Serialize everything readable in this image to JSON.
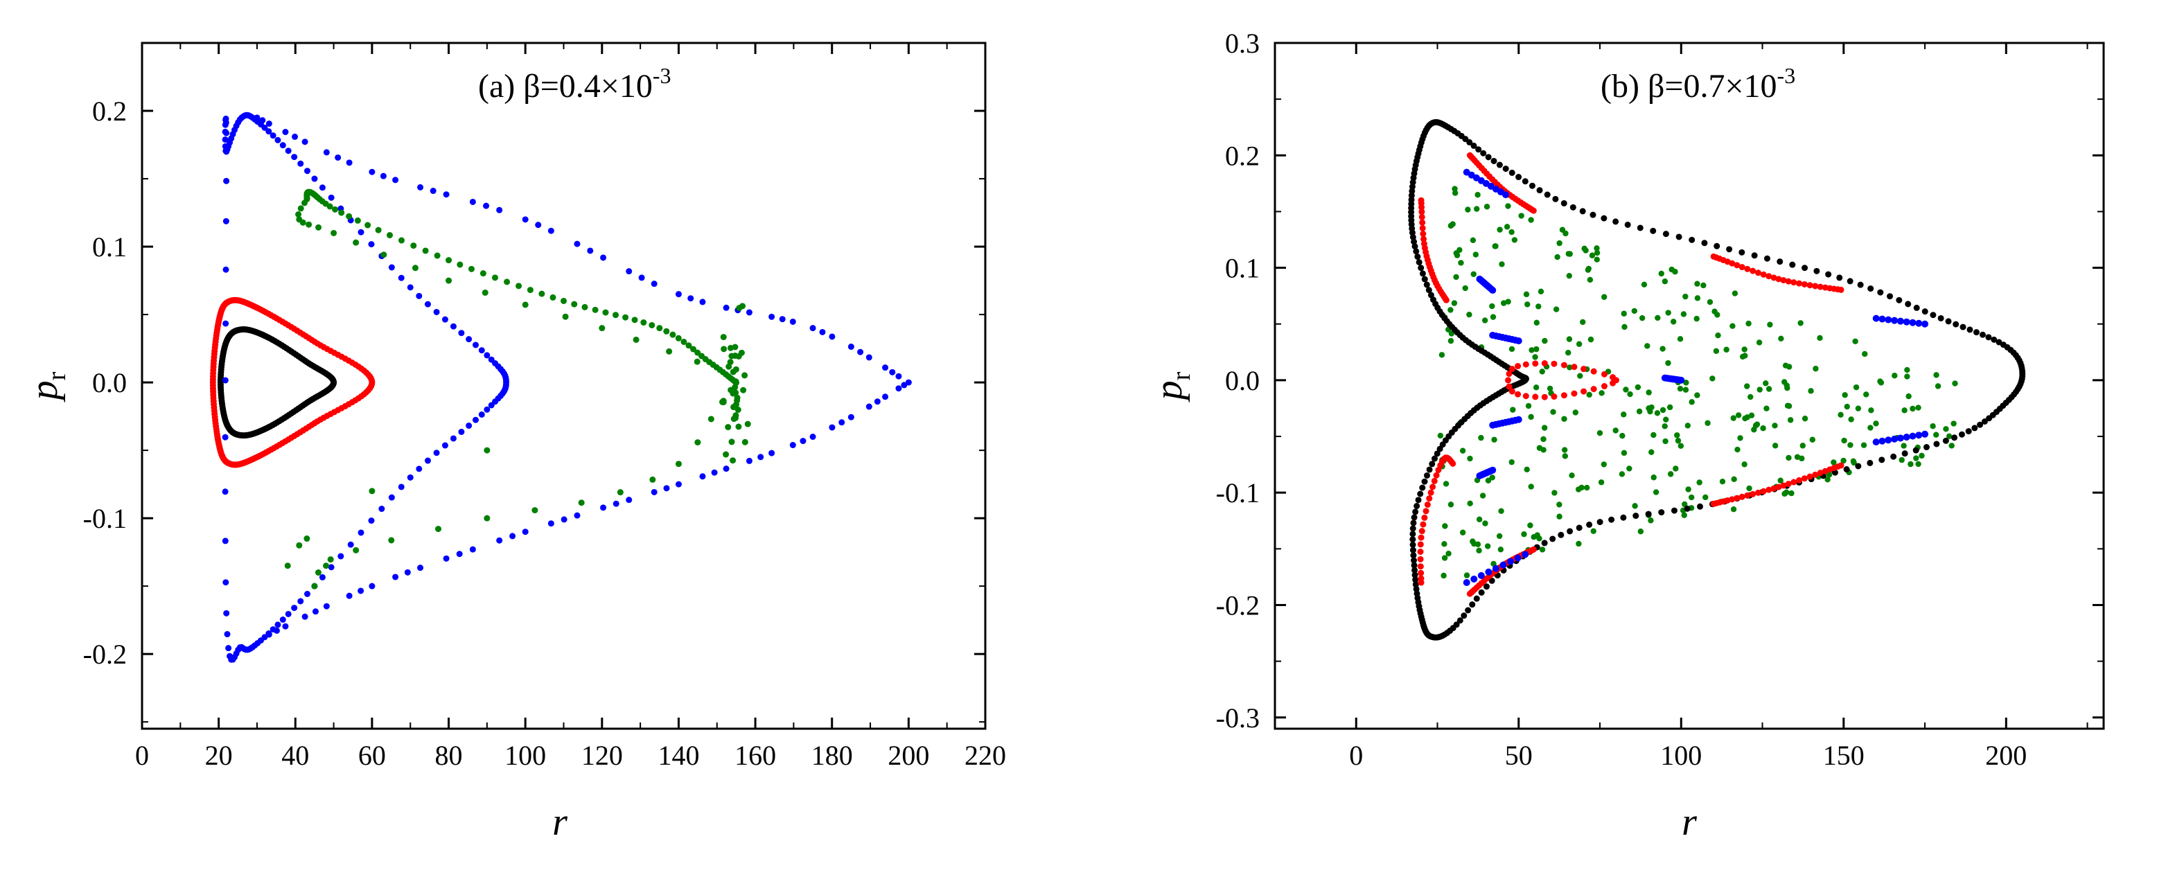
{
  "figure": {
    "description_labels": [
      "(a)",
      "(b)"
    ]
  },
  "chart_data": [
    {
      "type": "scatter",
      "panel": "a",
      "title": "(a) β=0.4×10",
      "title_exponent": "-3",
      "xlabel": "r",
      "ylabel": "p",
      "ylabel_subscript": "r",
      "xlim": [
        0,
        220
      ],
      "ylim": [
        -0.255,
        0.25
      ],
      "xticks": [
        0,
        20,
        40,
        60,
        80,
        100,
        120,
        140,
        160,
        180,
        200,
        220
      ],
      "xtick_labels": [
        "0",
        "20",
        "40",
        "60",
        "80",
        "100",
        "120",
        "140",
        "160",
        "180",
        "200",
        "220"
      ],
      "yticks": [
        -0.2,
        -0.1,
        0.0,
        0.1,
        0.2
      ],
      "ytick_labels": [
        "-0.2",
        "-0.1",
        "0.0",
        "0.1",
        "0.2"
      ],
      "grid": false,
      "series": [
        {
          "name": "black orbit",
          "color": "#000000",
          "shape": "closed-triangle-loop",
          "r_range": [
            22,
            50
          ],
          "pr_amplitude": 0.04,
          "points": 160
        },
        {
          "name": "red orbit",
          "color": "#ff0000",
          "shape": "closed-triangle-loop",
          "r_range": [
            20,
            60
          ],
          "pr_amplitude": 0.06,
          "points": 200
        },
        {
          "name": "blue orbit",
          "color": "#0000ff",
          "shape": "separatrix",
          "vertices": [
            [
              26,
              0.195
            ],
            [
              95,
              0.0
            ],
            [
              26,
              -0.195
            ]
          ],
          "outer": [
            [
              30,
              0.19
            ],
            [
              200,
              0.0
            ],
            [
              30,
              -0.19
            ]
          ]
        },
        {
          "name": "green orbit",
          "color": "#008000",
          "shape": "sparse-island",
          "vertices": [
            [
              43,
              0.135
            ],
            [
              155,
              0.0
            ],
            [
              43,
              -0.13
            ]
          ]
        }
      ]
    },
    {
      "type": "scatter",
      "panel": "b",
      "title": "(b) β=0.7×10",
      "title_exponent": "-3",
      "xlabel": "r",
      "ylabel": "p",
      "ylabel_subscript": "r",
      "xlim": [
        -25,
        230
      ],
      "ylim": [
        -0.31,
        0.3
      ],
      "xticks": [
        0,
        50,
        100,
        150,
        200
      ],
      "xtick_labels": [
        "0",
        "50",
        "100",
        "150",
        "200"
      ],
      "yticks": [
        -0.3,
        -0.2,
        -0.1,
        0.0,
        0.1,
        0.2,
        0.3
      ],
      "ytick_labels": [
        "-0.3",
        "-0.2",
        "-0.1",
        "0.0",
        "0.1",
        "0.2",
        "0.3"
      ],
      "grid": false,
      "series": [
        {
          "name": "black orbit",
          "color": "#000000",
          "shape": "outer-boundary",
          "vertices": [
            [
              22,
              0.228
            ],
            [
              205,
              0.005
            ],
            [
              22,
              -0.228
            ]
          ]
        },
        {
          "name": "red orbit",
          "color": "#ff0000",
          "shape": "island-chain"
        },
        {
          "name": "blue orbit",
          "color": "#0000ff",
          "shape": "island-chain"
        },
        {
          "name": "green orbit",
          "color": "#008000",
          "shape": "chaotic-sea"
        }
      ]
    }
  ]
}
